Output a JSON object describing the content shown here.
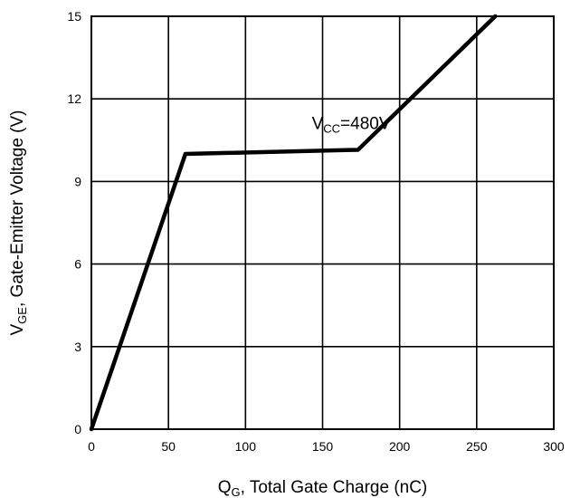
{
  "chart_data": {
    "type": "line",
    "xlim": [
      0,
      300
    ],
    "ylim": [
      0,
      15
    ],
    "xticks": [
      0,
      50,
      100,
      150,
      200,
      250,
      300
    ],
    "yticks": [
      0,
      3,
      6,
      9,
      12,
      15
    ],
    "grid": true,
    "xlabel": {
      "main": "Q",
      "sub": "G",
      "rest": ", Total Gate Charge (nC)"
    },
    "ylabel": {
      "main": "V",
      "sub": "GE",
      "rest": ", Gate-Emitter Voltage (V)"
    },
    "annotations": [
      {
        "main": "V",
        "sub": "CC",
        "rest": "=480V",
        "x": 143,
        "y": 10.9
      }
    ],
    "series": [
      {
        "x": [
          0,
          61,
          173,
          262
        ],
        "y": [
          0,
          10.0,
          10.15,
          15.0
        ]
      }
    ],
    "colors": {
      "line": "#000000",
      "grid": "#000000",
      "frame": "#000000"
    }
  }
}
